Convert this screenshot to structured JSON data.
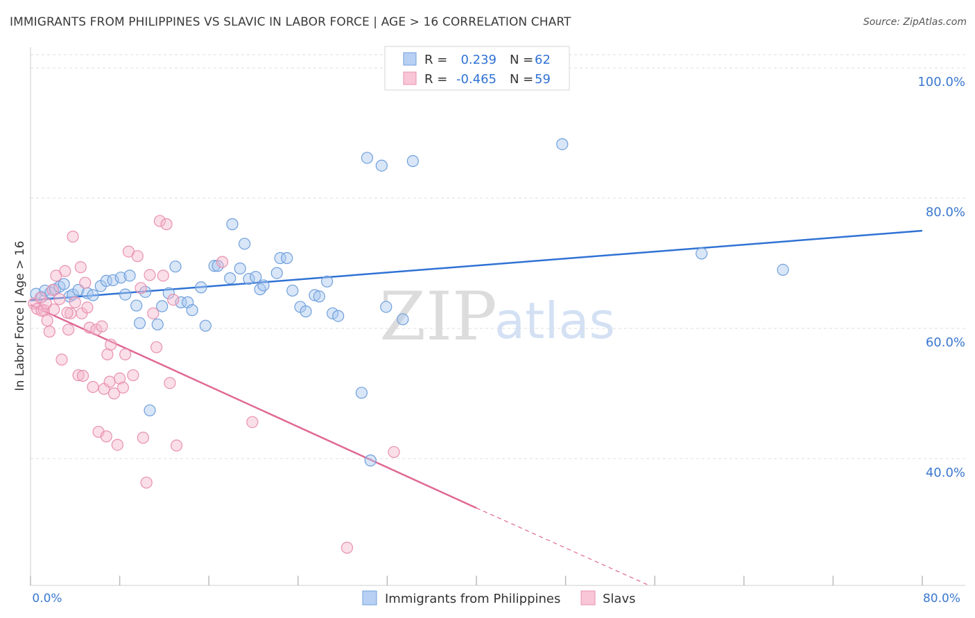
{
  "header": {
    "title": "IMMIGRANTS FROM PHILIPPINES VS SLAVIC IN LABOR FORCE | AGE > 16 CORRELATION CHART",
    "source": "Source: ZipAtlas.com"
  },
  "watermark": {
    "zip": "ZIP",
    "atlas": "atlas"
  },
  "colors": {
    "blue": "#2f72d4",
    "blue_fill": "#a9c8f0",
    "blue_stroke": "#6f9fdc",
    "pink": "#e06793",
    "pink_fill": "#f4b6cb",
    "pink_stroke": "#e890af",
    "tick_text": "#3a78d0",
    "grid": "#dddddd"
  },
  "legend_box": {
    "rows": [
      {
        "r_label": "R =",
        "r_value": "0.239",
        "n_label": "N =",
        "n_value": "62",
        "color": "blue"
      },
      {
        "r_label": "R =",
        "r_value": "-0.465",
        "n_label": "N =",
        "n_value": "59",
        "color": "pink"
      }
    ]
  },
  "chart_data": {
    "type": "scatter",
    "title": "IMMIGRANTS FROM PHILIPPINES VS SLAVIC IN LABOR FORCE | AGE > 16 CORRELATION CHART",
    "xlabel": "",
    "ylabel": "In Labor Force | Age > 16",
    "xlim": [
      0,
      80
    ],
    "ylim": [
      20.5,
      103
    ],
    "x_tick_labels": [
      {
        "value": 0,
        "label": "0.0%"
      },
      {
        "value": 80,
        "label": "80.0%"
      }
    ],
    "y_ticks": [
      {
        "value": 100,
        "label": "100.0%"
      },
      {
        "value": 80,
        "label": "80.0%"
      },
      {
        "value": 60,
        "label": "60.0%"
      },
      {
        "value": 40,
        "label": "40.0%"
      }
    ],
    "x_minor_ticks": [
      0,
      8,
      16,
      24,
      32,
      40,
      48,
      56,
      64,
      72,
      80
    ],
    "grid": true,
    "legend_position": "bottom-center",
    "series": [
      {
        "name": "Immigrants from Philippines",
        "color": "blue",
        "trend": {
          "x0": 0,
          "y0": 64.3,
          "x1": 80,
          "y1": 75.0
        },
        "points": [
          [
            0.5,
            65.3
          ],
          [
            1.0,
            64.8
          ],
          [
            1.3,
            65.8
          ],
          [
            1.8,
            65.5
          ],
          [
            2.2,
            66.0
          ],
          [
            2.6,
            66.4
          ],
          [
            3.0,
            66.8
          ],
          [
            3.5,
            64.9
          ],
          [
            3.8,
            65.2
          ],
          [
            4.3,
            65.9
          ],
          [
            5.1,
            65.4
          ],
          [
            5.6,
            65.1
          ],
          [
            6.3,
            66.5
          ],
          [
            6.8,
            67.3
          ],
          [
            7.4,
            67.4
          ],
          [
            8.1,
            67.8
          ],
          [
            8.5,
            65.2
          ],
          [
            8.9,
            68.1
          ],
          [
            9.5,
            63.5
          ],
          [
            9.8,
            60.8
          ],
          [
            10.3,
            65.6
          ],
          [
            10.7,
            47.4
          ],
          [
            11.4,
            60.6
          ],
          [
            11.8,
            63.4
          ],
          [
            12.4,
            65.4
          ],
          [
            13.0,
            69.5
          ],
          [
            13.5,
            64.0
          ],
          [
            14.1,
            64.0
          ],
          [
            14.5,
            62.8
          ],
          [
            15.3,
            66.3
          ],
          [
            15.7,
            60.4
          ],
          [
            16.5,
            69.6
          ],
          [
            16.8,
            69.6
          ],
          [
            17.9,
            67.7
          ],
          [
            18.1,
            76.0
          ],
          [
            18.8,
            69.2
          ],
          [
            19.2,
            73.0
          ],
          [
            19.6,
            67.6
          ],
          [
            20.2,
            67.9
          ],
          [
            20.6,
            66.0
          ],
          [
            20.9,
            66.6
          ],
          [
            22.1,
            68.5
          ],
          [
            22.4,
            70.8
          ],
          [
            23.0,
            70.8
          ],
          [
            23.5,
            65.8
          ],
          [
            24.2,
            63.3
          ],
          [
            24.7,
            62.6
          ],
          [
            25.5,
            65.1
          ],
          [
            25.9,
            64.9
          ],
          [
            26.6,
            67.2
          ],
          [
            27.1,
            62.3
          ],
          [
            27.6,
            61.9
          ],
          [
            29.7,
            50.1
          ],
          [
            30.2,
            86.2
          ],
          [
            30.5,
            39.7
          ],
          [
            31.5,
            85.0
          ],
          [
            31.9,
            63.3
          ],
          [
            33.4,
            61.4
          ],
          [
            34.3,
            85.7
          ],
          [
            47.7,
            88.3
          ],
          [
            60.2,
            71.5
          ],
          [
            67.5,
            69.0
          ]
        ]
      },
      {
        "name": "Slavs",
        "color": "pink",
        "trend": {
          "x0": 0,
          "y0": 63.6,
          "x1": 40,
          "y1": 32.4
        },
        "trend_dashed": {
          "x0": 40,
          "y0": 32.4,
          "x1": 55.5,
          "y1": 20.5
        },
        "points": [
          [
            0.3,
            63.8
          ],
          [
            0.6,
            63.0
          ],
          [
            0.9,
            64.7
          ],
          [
            1.2,
            62.8
          ],
          [
            1.5,
            61.2
          ],
          [
            1.7,
            59.5
          ],
          [
            2.0,
            65.9
          ],
          [
            2.3,
            68.1
          ],
          [
            2.6,
            64.5
          ],
          [
            2.8,
            55.2
          ],
          [
            3.1,
            68.8
          ],
          [
            3.4,
            59.8
          ],
          [
            3.6,
            62.3
          ],
          [
            3.8,
            74.1
          ],
          [
            4.0,
            64.0
          ],
          [
            4.3,
            52.8
          ],
          [
            4.5,
            69.4
          ],
          [
            4.9,
            67.0
          ],
          [
            5.3,
            60.1
          ],
          [
            5.6,
            51.0
          ],
          [
            5.9,
            59.8
          ],
          [
            6.1,
            44.1
          ],
          [
            6.6,
            50.7
          ],
          [
            6.9,
            56.0
          ],
          [
            7.2,
            57.5
          ],
          [
            7.5,
            50.0
          ],
          [
            7.8,
            42.1
          ],
          [
            8.0,
            52.3
          ],
          [
            8.3,
            50.9
          ],
          [
            8.5,
            56.0
          ],
          [
            8.8,
            71.8
          ],
          [
            9.2,
            52.8
          ],
          [
            9.6,
            71.1
          ],
          [
            10.1,
            43.2
          ],
          [
            10.4,
            36.3
          ],
          [
            10.7,
            68.2
          ],
          [
            11.0,
            62.3
          ],
          [
            11.3,
            57.1
          ],
          [
            11.6,
            76.5
          ],
          [
            11.9,
            68.1
          ],
          [
            12.2,
            76.0
          ],
          [
            12.5,
            51.6
          ],
          [
            12.8,
            64.4
          ],
          [
            13.1,
            42.0
          ],
          [
            17.2,
            70.2
          ],
          [
            19.9,
            45.6
          ],
          [
            28.4,
            26.3
          ],
          [
            32.6,
            41.0
          ],
          [
            1.0,
            62.7
          ],
          [
            1.4,
            63.8
          ],
          [
            2.1,
            62.9
          ],
          [
            3.3,
            62.4
          ],
          [
            4.6,
            62.3
          ],
          [
            5.1,
            63.2
          ],
          [
            6.4,
            60.3
          ],
          [
            7.1,
            51.8
          ],
          [
            9.9,
            66.2
          ],
          [
            4.7,
            52.7
          ],
          [
            6.8,
            43.4
          ]
        ]
      }
    ]
  },
  "bottom_legend": [
    {
      "label": "Immigrants from Philippines",
      "color": "blue"
    },
    {
      "label": "Slavs",
      "color": "pink"
    }
  ]
}
